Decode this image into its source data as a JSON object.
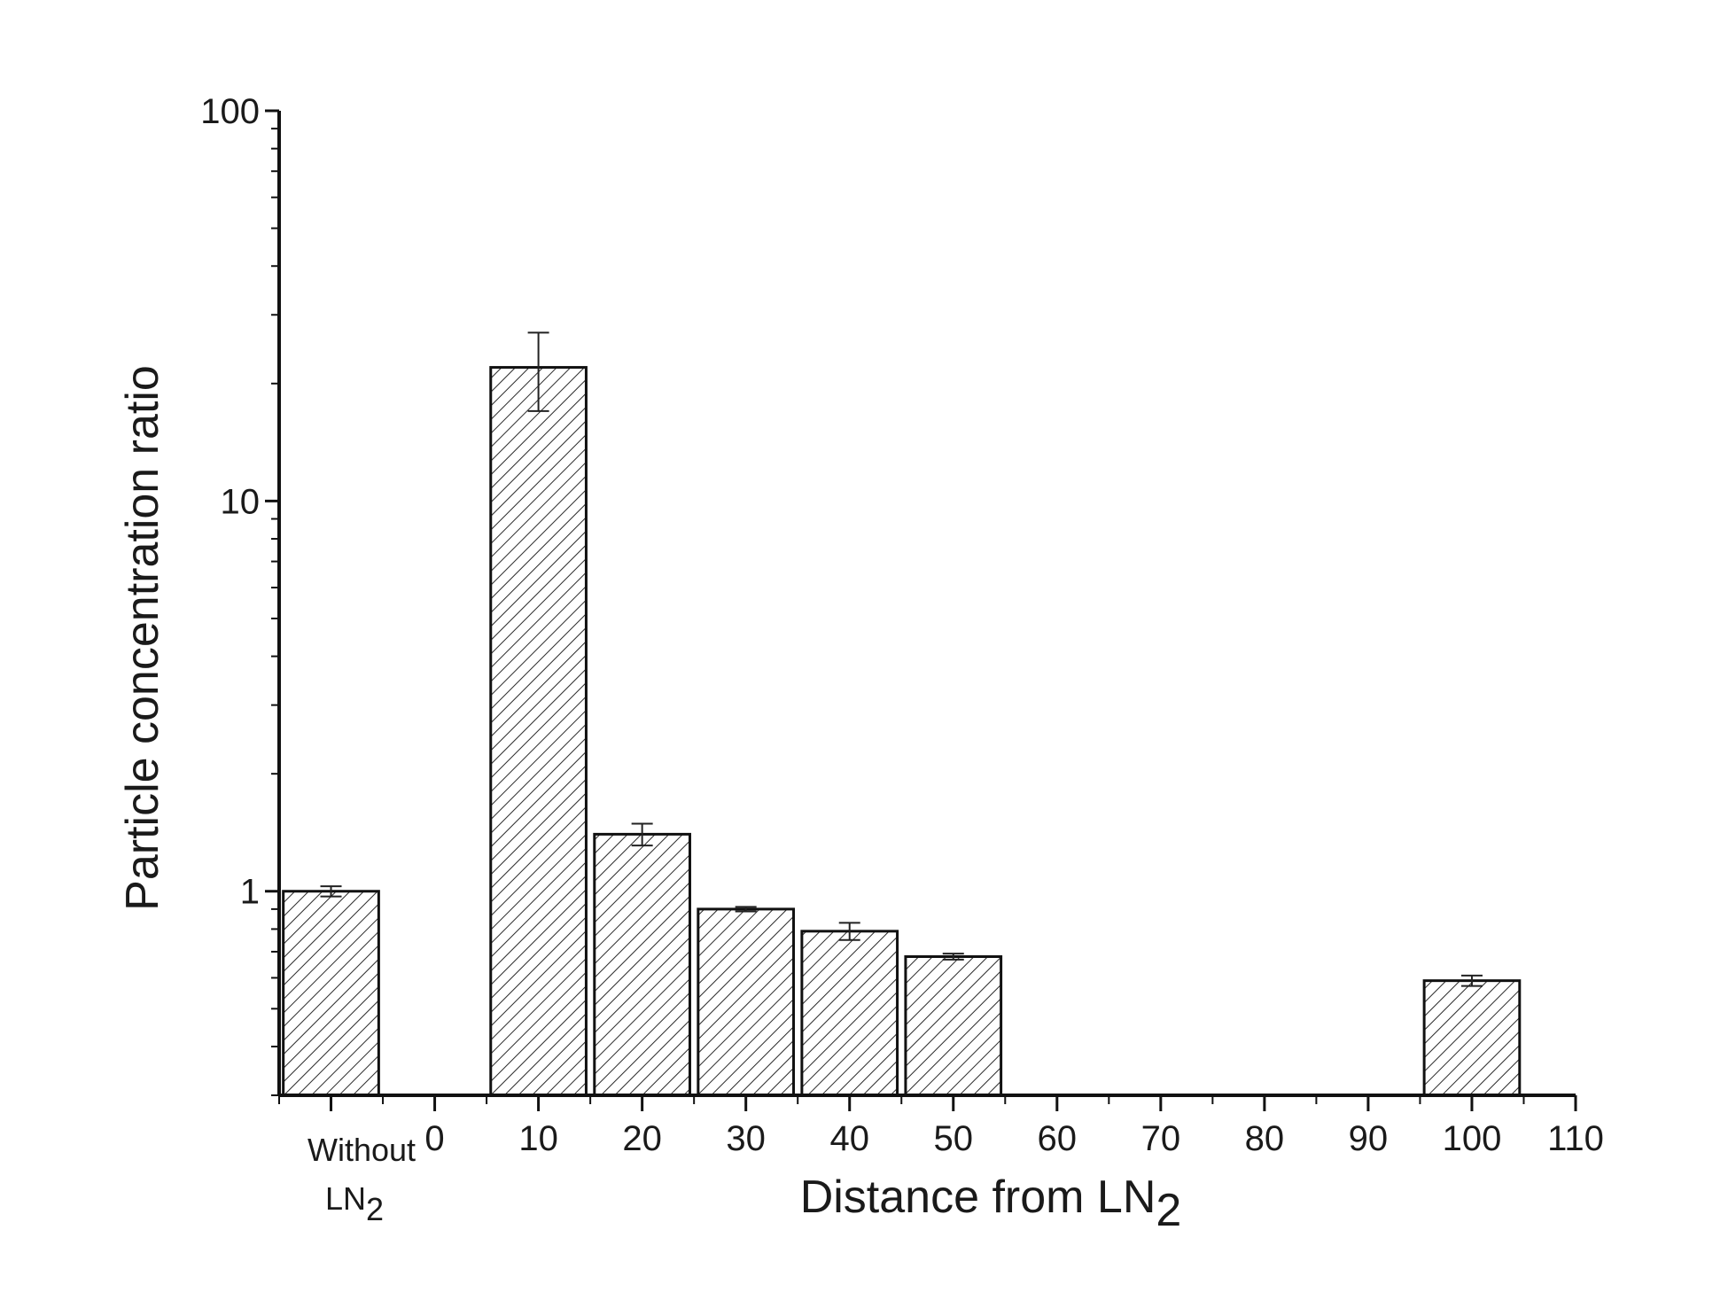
{
  "chart_data": {
    "type": "bar",
    "title": "",
    "xlabel": "Distance from LN",
    "xlabel_subscript": "2",
    "ylabel": "Particle concentration ratio",
    "y_scale": "log",
    "ylim": [
      0.3,
      100
    ],
    "xlim": [
      -15,
      110
    ],
    "y_tick_labels": [
      "1",
      "10",
      "100"
    ],
    "x_tick_labels": [
      "0",
      "10",
      "20",
      "30",
      "40",
      "50",
      "60",
      "70",
      "80",
      "90",
      "100",
      "110"
    ],
    "special_category": {
      "label_line1": "Without",
      "label_line2": "LN",
      "label_line2_subscript": "2"
    },
    "bars": [
      {
        "category": "Without LN2",
        "x": -10,
        "value": 1.0,
        "err": 0.03
      },
      {
        "category": "10",
        "x": 10,
        "value": 22,
        "err": 5
      },
      {
        "category": "20",
        "x": 20,
        "value": 1.4,
        "err": 0.09
      },
      {
        "category": "30",
        "x": 30,
        "value": 0.9,
        "err": 0.012
      },
      {
        "category": "40",
        "x": 40,
        "value": 0.79,
        "err": 0.04
      },
      {
        "category": "50",
        "x": 50,
        "value": 0.68,
        "err": 0.012
      },
      {
        "category": "100",
        "x": 100,
        "value": 0.59,
        "err": 0.018
      }
    ],
    "bar_fill": "hatched",
    "grid": false,
    "legend": "none"
  }
}
